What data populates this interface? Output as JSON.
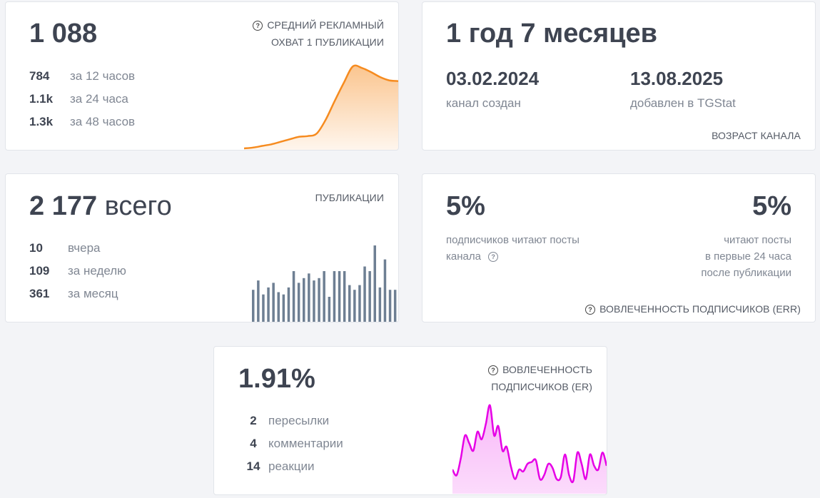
{
  "reach": {
    "value": "1 088",
    "caption_line1": "СРЕДНИЙ РЕКЛАМНЫЙ",
    "caption_line2": "ОХВАТ 1 ПУБЛИКАЦИИ",
    "rows": [
      {
        "value": "784",
        "label": "за 12 часов"
      },
      {
        "value": "1.1k",
        "label": "за 24 часа"
      },
      {
        "value": "1.3k",
        "label": "за 48 часов"
      }
    ]
  },
  "age": {
    "value": "1 год 7 месяцев",
    "created_date": "03.02.2024",
    "created_label": "канал создан",
    "added_date": "13.08.2025",
    "added_label": "добавлен в TGStat",
    "caption": "ВОЗРАСТ КАНАЛА"
  },
  "posts": {
    "value": "2 177",
    "value_suffix": "всего",
    "caption": "ПУБЛИКАЦИИ",
    "rows": [
      {
        "value": "10",
        "label": "вчера"
      },
      {
        "value": "109",
        "label": "за неделю"
      },
      {
        "value": "361",
        "label": "за месяц"
      }
    ]
  },
  "err": {
    "left_value": "5%",
    "left_label_line1": "подписчиков читают посты",
    "left_label_line2": "канала",
    "right_value": "5%",
    "right_label_line1": "читают посты",
    "right_label_line2": "в первые 24 часа",
    "right_label_line3": "после публикации",
    "caption": "ВОВЛЕЧЕННОСТЬ ПОДПИСЧИКОВ (ERR)"
  },
  "er": {
    "value": "1.91%",
    "caption_line1": "ВОВЛЕЧЕННОСТЬ",
    "caption_line2": "ПОДПИСЧИКОВ (ER)",
    "rows": [
      {
        "value": "2",
        "label": "пересылки"
      },
      {
        "value": "4",
        "label": "комментарии"
      },
      {
        "value": "14",
        "label": "реакции"
      }
    ]
  },
  "colors": {
    "reach_line": "#f68b1f",
    "posts_bars": "#6e7f93",
    "er_line": "#e600e6"
  },
  "chart_data": [
    {
      "type": "area",
      "values": [
        0,
        1,
        3,
        5,
        8,
        11,
        14,
        15,
        18,
        35,
        58,
        80,
        100,
        98,
        93,
        87,
        83,
        82
      ]
    },
    {
      "type": "bar",
      "values": [
        14,
        18,
        12,
        15,
        17,
        13,
        12,
        15,
        22,
        17,
        19,
        21,
        18,
        19,
        22,
        11,
        22,
        22,
        22,
        16,
        14,
        16,
        24,
        22,
        33,
        15,
        27,
        14,
        14
      ]
    },
    {
      "type": "area",
      "values": [
        12,
        9,
        18,
        30,
        26,
        22,
        32,
        28,
        36,
        46,
        30,
        35,
        22,
        24,
        14,
        7,
        12,
        11,
        15,
        16,
        17,
        7,
        9,
        15,
        13,
        7,
        8,
        20,
        9,
        6,
        21,
        15,
        7,
        20,
        14,
        12,
        21,
        14
      ]
    }
  ]
}
